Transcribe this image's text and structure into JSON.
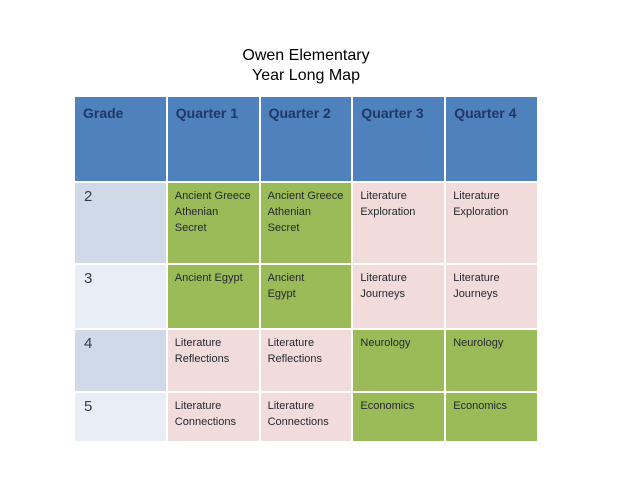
{
  "title": {
    "line1": "Owen Elementary",
    "line2": "Year Long Map"
  },
  "colors": {
    "header_bg": "#4f81bd",
    "header_text": "#1f3864",
    "subject_green": "#9bbb59",
    "subject_pink": "#f2dcdb",
    "grade_band_dark": "#cfd9e8",
    "grade_band_light": "#e9eef6",
    "body_text": "#23282f",
    "title_text": "#000000"
  },
  "table": {
    "headers": [
      "Grade",
      "Quarter 1",
      "Quarter 2",
      "Quarter 3",
      "Quarter 4"
    ],
    "rows": [
      {
        "grade": "2",
        "grade_bg": "#cfd9e8",
        "cells": [
          {
            "text": "Ancient Greece\nAthenian\nSecret",
            "bg": "#9bbb59"
          },
          {
            "text": "Ancient Greece\nAthenian\nSecret",
            "bg": "#9bbb59"
          },
          {
            "text": "Literature\nExploration",
            "bg": "#f2dcdb"
          },
          {
            "text": "Literature\nExploration",
            "bg": "#f2dcdb"
          }
        ]
      },
      {
        "grade": "3",
        "grade_bg": "#e9eef6",
        "cells": [
          {
            "text": "Ancient Egypt",
            "bg": "#9bbb59"
          },
          {
            "text": "Ancient\nEgypt",
            "bg": "#9bbb59"
          },
          {
            "text": "Literature\nJourneys",
            "bg": "#f2dcdb"
          },
          {
            "text": "Literature\nJourneys",
            "bg": "#f2dcdb"
          }
        ]
      },
      {
        "grade": "4",
        "grade_bg": "#cfd9e8",
        "cells": [
          {
            "text": "Literature\nReflections",
            "bg": "#f2dcdb"
          },
          {
            "text": "Literature\nReflections",
            "bg": "#f2dcdb"
          },
          {
            "text": "Neurology",
            "bg": "#9bbb59"
          },
          {
            "text": "Neurology",
            "bg": "#9bbb59"
          }
        ]
      },
      {
        "grade": "5",
        "grade_bg": "#e9eef6",
        "cells": [
          {
            "text": "Literature\nConnections",
            "bg": "#f2dcdb"
          },
          {
            "text": "Literature\nConnections",
            "bg": "#f2dcdb"
          },
          {
            "text": "Economics",
            "bg": "#9bbb59"
          },
          {
            "text": "Economics",
            "bg": "#9bbb59"
          }
        ]
      }
    ]
  }
}
